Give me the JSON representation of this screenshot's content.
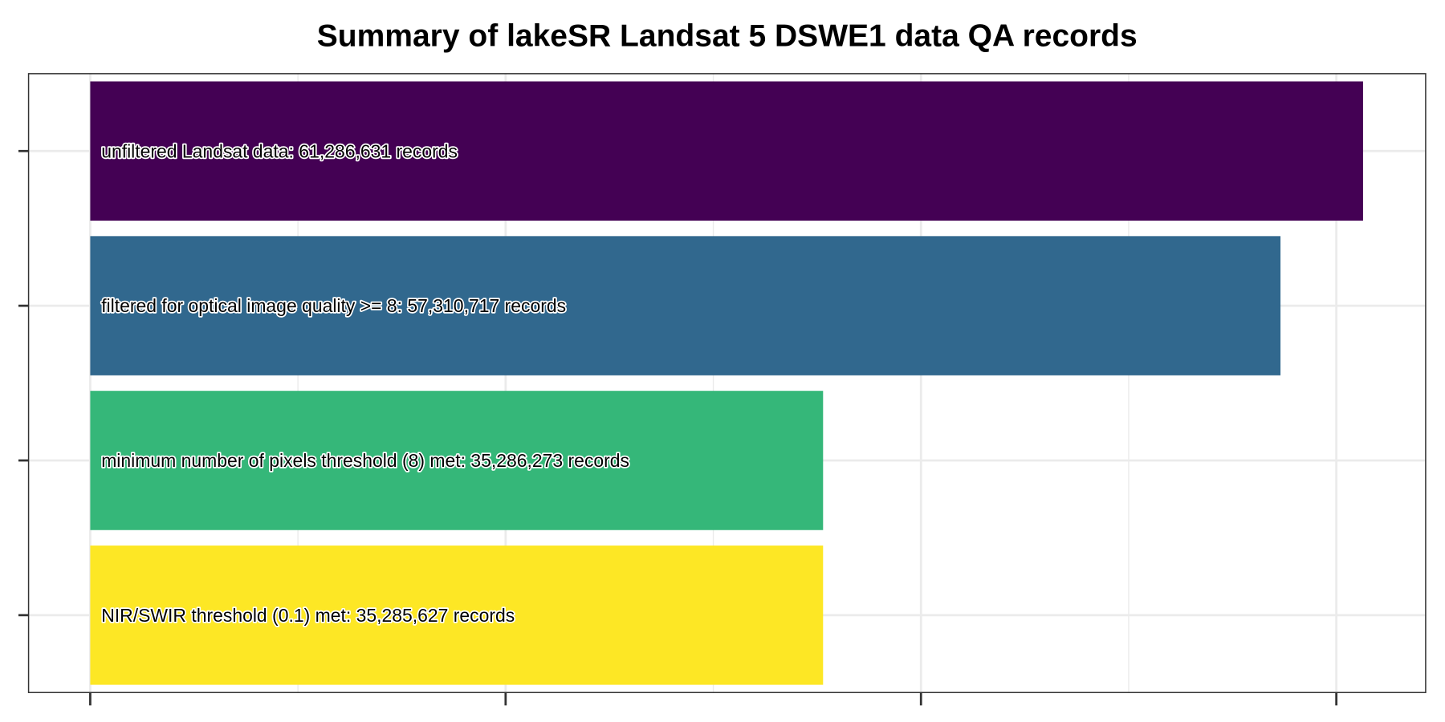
{
  "chart_data": {
    "type": "bar",
    "orientation": "horizontal",
    "title": "Summary of lakeSR Landsat 5 DSWE1 data QA records",
    "xlabel": "",
    "ylabel": "",
    "categories": [
      "unfiltered Landsat data: 61,286,631 records",
      "filtered for optical image quality >= 8: 57,310,717 records",
      "minimum number of pixels threshold (8) met: 35,286,273 records",
      "NIR/SWIR threshold (0.1) met: 35,285,627 records"
    ],
    "values": [
      61286631,
      57310717,
      35286273,
      35285627
    ],
    "colors": [
      "#440154",
      "#31688E",
      "#35B779",
      "#FDE725"
    ],
    "xlim": [
      -2970000,
      64300000
    ],
    "x_major_ticks": [
      0,
      20000000,
      40000000,
      60000000
    ],
    "x_minor_ticks": [
      10000000,
      30000000,
      50000000
    ],
    "tick_labels_shown": false,
    "grid": true,
    "legend": "none"
  }
}
